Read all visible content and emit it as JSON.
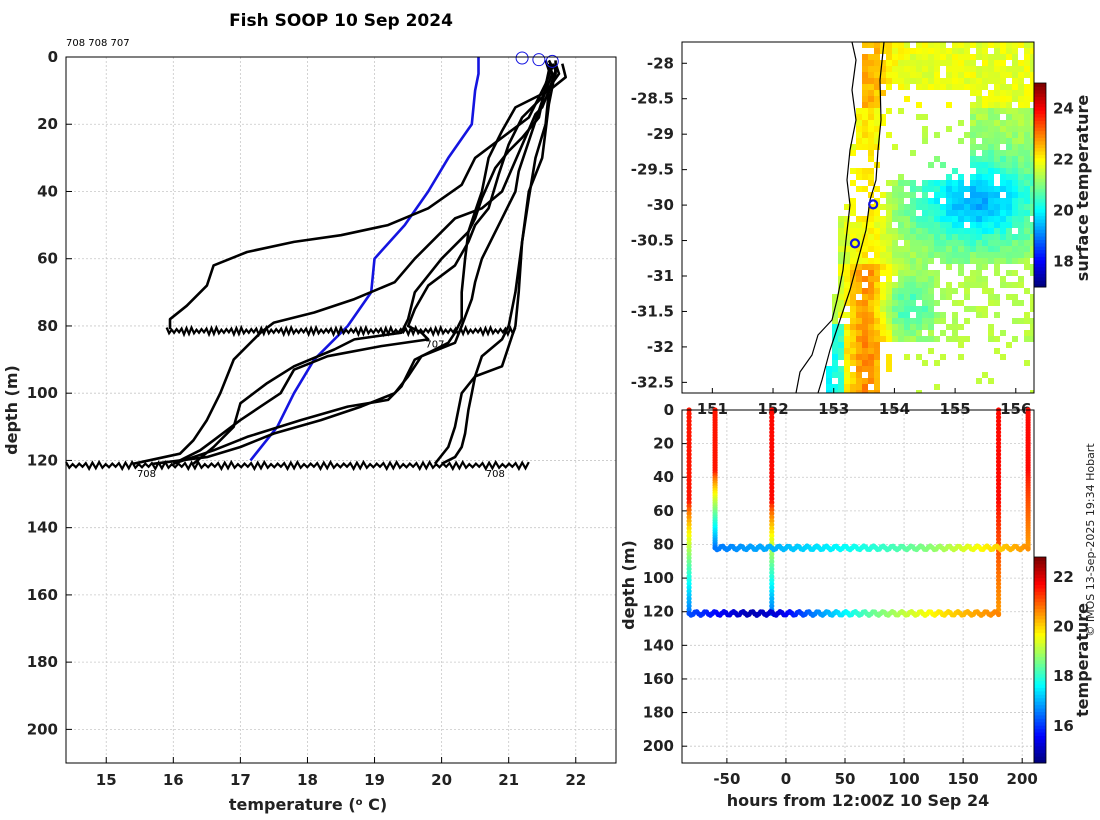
{
  "title": "Fish SOOP 10 Sep 2024",
  "float_ids": "708 708 707",
  "copyright": "© IMOS 13-Sep-2025 19:34 Hobart",
  "colors": {
    "profile": "#000000",
    "climatology": "#1414e0",
    "grid": "#c8c8c8",
    "land_line": "#000000"
  },
  "chart_data": [
    {
      "type": "line",
      "name": "temperature-profiles",
      "xlabel": "temperature (",
      "xlabel_sup": "o",
      "xlabel_tail": " C)",
      "ylabel": "depth (m)",
      "xlim": [
        14.4,
        22.6
      ],
      "ylim": [
        210,
        0
      ],
      "xticks": [
        15,
        16,
        17,
        18,
        19,
        20,
        21,
        22
      ],
      "yticks": [
        0,
        20,
        40,
        60,
        80,
        100,
        120,
        140,
        160,
        180,
        200
      ],
      "inline_labels": [
        {
          "text": "708",
          "x": 15.6,
          "y": 122.5
        },
        {
          "text": "708",
          "x": 20.8,
          "y": 122.5
        },
        {
          "text": "707",
          "x": 19.9,
          "y": 84
        }
      ],
      "surface_markers": [
        {
          "x": 21.2,
          "y": 0
        },
        {
          "x": 21.45,
          "y": 0.5
        },
        {
          "x": 21.65,
          "y": 1
        }
      ],
      "series": [
        {
          "name": "climatology",
          "color": "#1414e0",
          "points": [
            [
              20.55,
              0
            ],
            [
              20.55,
              5
            ],
            [
              20.5,
              10
            ],
            [
              20.45,
              20
            ],
            [
              20.1,
              30
            ],
            [
              19.8,
              40
            ],
            [
              19.45,
              50
            ],
            [
              19.0,
              60
            ],
            [
              18.95,
              70
            ],
            [
              18.6,
              80
            ],
            [
              18.1,
              90
            ],
            [
              17.8,
              100
            ],
            [
              17.55,
              110
            ],
            [
              17.15,
              120
            ]
          ]
        },
        {
          "name": "profile-1",
          "color": "#000000",
          "points": [
            [
              21.6,
              1
            ],
            [
              21.65,
              3
            ],
            [
              21.55,
              8
            ],
            [
              21.3,
              18
            ],
            [
              20.5,
              30
            ],
            [
              20.3,
              38
            ],
            [
              19.8,
              45
            ],
            [
              19.2,
              50
            ],
            [
              18.5,
              53
            ],
            [
              17.8,
              55
            ],
            [
              17.1,
              58
            ],
            [
              16.6,
              62
            ],
            [
              16.5,
              68
            ],
            [
              16.2,
              74
            ],
            [
              15.95,
              78
            ],
            [
              15.95,
              81
            ]
          ]
        },
        {
          "name": "profile-2",
          "color": "#000000",
          "points": [
            [
              21.7,
              2
            ],
            [
              21.7,
              5
            ],
            [
              21.5,
              15
            ],
            [
              21.4,
              17
            ],
            [
              20.9,
              40
            ],
            [
              20.6,
              45
            ],
            [
              20.2,
              48
            ],
            [
              20.0,
              52
            ],
            [
              19.6,
              60
            ],
            [
              19.3,
              67
            ],
            [
              18.7,
              72
            ],
            [
              18.1,
              76
            ],
            [
              17.5,
              79
            ],
            [
              17.3,
              82
            ],
            [
              16.9,
              90
            ],
            [
              16.7,
              100
            ],
            [
              16.5,
              108
            ],
            [
              16.3,
              114
            ],
            [
              16.1,
              118
            ],
            [
              15.4,
              121
            ]
          ]
        },
        {
          "name": "profile-3",
          "color": "#000000",
          "points": [
            [
              21.65,
              2
            ],
            [
              21.7,
              4
            ],
            [
              21.6,
              14
            ],
            [
              21.5,
              30
            ],
            [
              21.3,
              40
            ],
            [
              21.2,
              55
            ],
            [
              21.1,
              70
            ],
            [
              21.0,
              80
            ],
            [
              20.9,
              84
            ],
            [
              20.6,
              89
            ],
            [
              20.5,
              95
            ],
            [
              20.3,
              100
            ],
            [
              20.2,
              110
            ],
            [
              20.1,
              116
            ],
            [
              19.9,
              121
            ]
          ]
        },
        {
          "name": "profile-4",
          "color": "#000000",
          "points": [
            [
              21.8,
              2
            ],
            [
              21.85,
              6
            ],
            [
              21.6,
              10
            ],
            [
              21.1,
              15
            ],
            [
              20.9,
              22
            ],
            [
              20.7,
              30
            ],
            [
              20.6,
              40
            ],
            [
              20.5,
              46
            ],
            [
              20.4,
              52
            ],
            [
              20.0,
              60
            ],
            [
              19.6,
              70
            ],
            [
              19.5,
              78
            ],
            [
              19.4,
              82
            ],
            [
              18.7,
              84
            ],
            [
              18.4,
              87
            ],
            [
              17.8,
              92
            ],
            [
              17.4,
              97
            ],
            [
              17.0,
              103
            ],
            [
              16.9,
              110
            ],
            [
              16.6,
              116
            ],
            [
              16.3,
              121
            ]
          ]
        },
        {
          "name": "profile-5",
          "color": "#000000",
          "points": [
            [
              21.7,
              2
            ],
            [
              21.75,
              5
            ],
            [
              21.5,
              12
            ],
            [
              21.2,
              18
            ],
            [
              21.0,
              26
            ],
            [
              20.85,
              35
            ],
            [
              20.7,
              45
            ],
            [
              20.5,
              50
            ],
            [
              20.4,
              55
            ],
            [
              20.2,
              62
            ],
            [
              19.8,
              68
            ],
            [
              19.6,
              75
            ],
            [
              19.5,
              80
            ],
            [
              19.7,
              82
            ],
            [
              19.8,
              84
            ],
            [
              19.1,
              86
            ],
            [
              18.3,
              89
            ],
            [
              17.8,
              93
            ],
            [
              17.6,
              100
            ],
            [
              17.3,
              104
            ],
            [
              17.0,
              108
            ],
            [
              16.6,
              114
            ],
            [
              16.4,
              117
            ],
            [
              16.0,
              121
            ]
          ]
        },
        {
          "name": "profile-6",
          "color": "#000000",
          "points": [
            [
              21.55,
              1
            ],
            [
              21.6,
              4
            ],
            [
              21.45,
              18
            ],
            [
              21.2,
              24
            ],
            [
              21.0,
              28
            ],
            [
              20.8,
              33
            ],
            [
              20.6,
              42
            ],
            [
              20.5,
              48
            ],
            [
              20.4,
              52
            ],
            [
              20.35,
              60
            ],
            [
              20.3,
              70
            ],
            [
              20.3,
              78
            ],
            [
              20.2,
              82
            ],
            [
              20.1,
              85
            ],
            [
              19.6,
              90
            ],
            [
              19.4,
              98
            ],
            [
              19.2,
              102
            ],
            [
              18.6,
              104
            ],
            [
              17.9,
              108
            ],
            [
              17.1,
              113
            ],
            [
              16.6,
              117
            ],
            [
              16.0,
              121
            ]
          ]
        },
        {
          "name": "profile-7",
          "color": "#000000",
          "points": [
            [
              21.6,
              2
            ],
            [
              21.65,
              5
            ],
            [
              21.55,
              10
            ],
            [
              21.35,
              22
            ],
            [
              21.15,
              34
            ],
            [
              21.1,
              40
            ],
            [
              20.9,
              48
            ],
            [
              20.7,
              56
            ],
            [
              20.6,
              60
            ],
            [
              20.5,
              67
            ],
            [
              20.45,
              72
            ],
            [
              20.3,
              80
            ],
            [
              20.2,
              85
            ],
            [
              19.7,
              89
            ],
            [
              19.5,
              95
            ],
            [
              19.3,
              100
            ],
            [
              18.8,
              104
            ],
            [
              18.2,
              108
            ],
            [
              17.5,
              112
            ],
            [
              17.0,
              116
            ],
            [
              16.5,
              119
            ],
            [
              15.7,
              121
            ]
          ]
        },
        {
          "name": "profile-8",
          "color": "#000000",
          "points": [
            [
              21.7,
              1
            ],
            [
              21.7,
              4
            ],
            [
              21.6,
              10
            ],
            [
              21.55,
              20
            ],
            [
              21.4,
              30
            ],
            [
              21.3,
              42
            ],
            [
              21.2,
              55
            ],
            [
              21.15,
              70
            ],
            [
              21.1,
              80
            ],
            [
              21.0,
              86
            ],
            [
              20.9,
              92
            ],
            [
              20.5,
              95
            ],
            [
              20.45,
              100
            ],
            [
              20.4,
              105
            ],
            [
              20.35,
              112
            ],
            [
              20.3,
              116
            ],
            [
              20.2,
              119
            ],
            [
              20.0,
              121
            ]
          ]
        }
      ],
      "bottom_traces": [
        {
          "depth": 81.5,
          "xmin": 15.9,
          "xmax": 21.1
        },
        {
          "depth": 121.5,
          "xmin": 14.4,
          "xmax": 21.3
        }
      ]
    },
    {
      "type": "heatmap",
      "name": "surface-temperature-map",
      "colorbar_label": "surface temperature",
      "xlim": [
        150.5,
        156.3
      ],
      "ylim": [
        -32.65,
        -27.7
      ],
      "xticks": [
        151,
        152,
        153,
        154,
        155,
        156
      ],
      "yticks": [
        -28,
        -28.5,
        -29,
        -29.5,
        -30,
        -30.5,
        -31,
        -31.5,
        -32,
        -32.5
      ],
      "ytick_labels": [
        "-28",
        "-28.5",
        "-29",
        "-29.5",
        "-30",
        "-30.5",
        "-31",
        "-31.5",
        "-32",
        "-32.5"
      ],
      "clim": [
        17,
        25
      ],
      "colorbar_ticks": [
        18,
        20,
        22,
        24
      ],
      "positions": [
        {
          "lon": 153.65,
          "lat": -29.99
        },
        {
          "lon": 153.35,
          "lat": -30.54
        }
      ]
    },
    {
      "type": "scatter",
      "name": "depth-time-section",
      "xlabel": "hours from 12:00Z 10 Sep 24",
      "ylabel": "depth (m)",
      "colorbar_label": "temperature",
      "xlim": [
        -88,
        210
      ],
      "ylim": [
        210,
        0
      ],
      "xticks": [
        -50,
        0,
        50,
        100,
        150,
        200
      ],
      "yticks": [
        0,
        20,
        40,
        60,
        80,
        100,
        120,
        140,
        160,
        180,
        200
      ],
      "clim": [
        14.5,
        22.8
      ],
      "colorbar_ticks": [
        16,
        18,
        20,
        22
      ],
      "vertical_casts": [
        {
          "hour": -82,
          "bottom": 121,
          "start_temp": 21.6,
          "end_temp": 16.5
        },
        {
          "hour": -60,
          "bottom": 82,
          "start_temp": 21.6,
          "end_temp": 16.5
        },
        {
          "hour": -12,
          "bottom": 121,
          "start_temp": 21.7,
          "end_temp": 16.5
        },
        {
          "hour": 180,
          "bottom": 121,
          "start_temp": 21.7,
          "end_temp": 20.5
        },
        {
          "hour": 205,
          "bottom": 82,
          "start_temp": 21.7,
          "end_temp": 20.5
        }
      ],
      "bottom_tracks": [
        {
          "depth": 82,
          "start_hour": -60,
          "end_hour": 205,
          "temps": [
            16.5,
            16.8,
            17.0,
            17.3,
            17.6,
            17.9,
            18.3,
            18.8,
            19.4,
            20.0,
            20.6
          ]
        },
        {
          "depth": 121,
          "start_hour": -82,
          "end_hour": 180,
          "temps": [
            16.2,
            15.5,
            14.9,
            15.3,
            16.5,
            17.5,
            18.5,
            19.2,
            19.8,
            20.3,
            20.7
          ]
        }
      ]
    }
  ]
}
